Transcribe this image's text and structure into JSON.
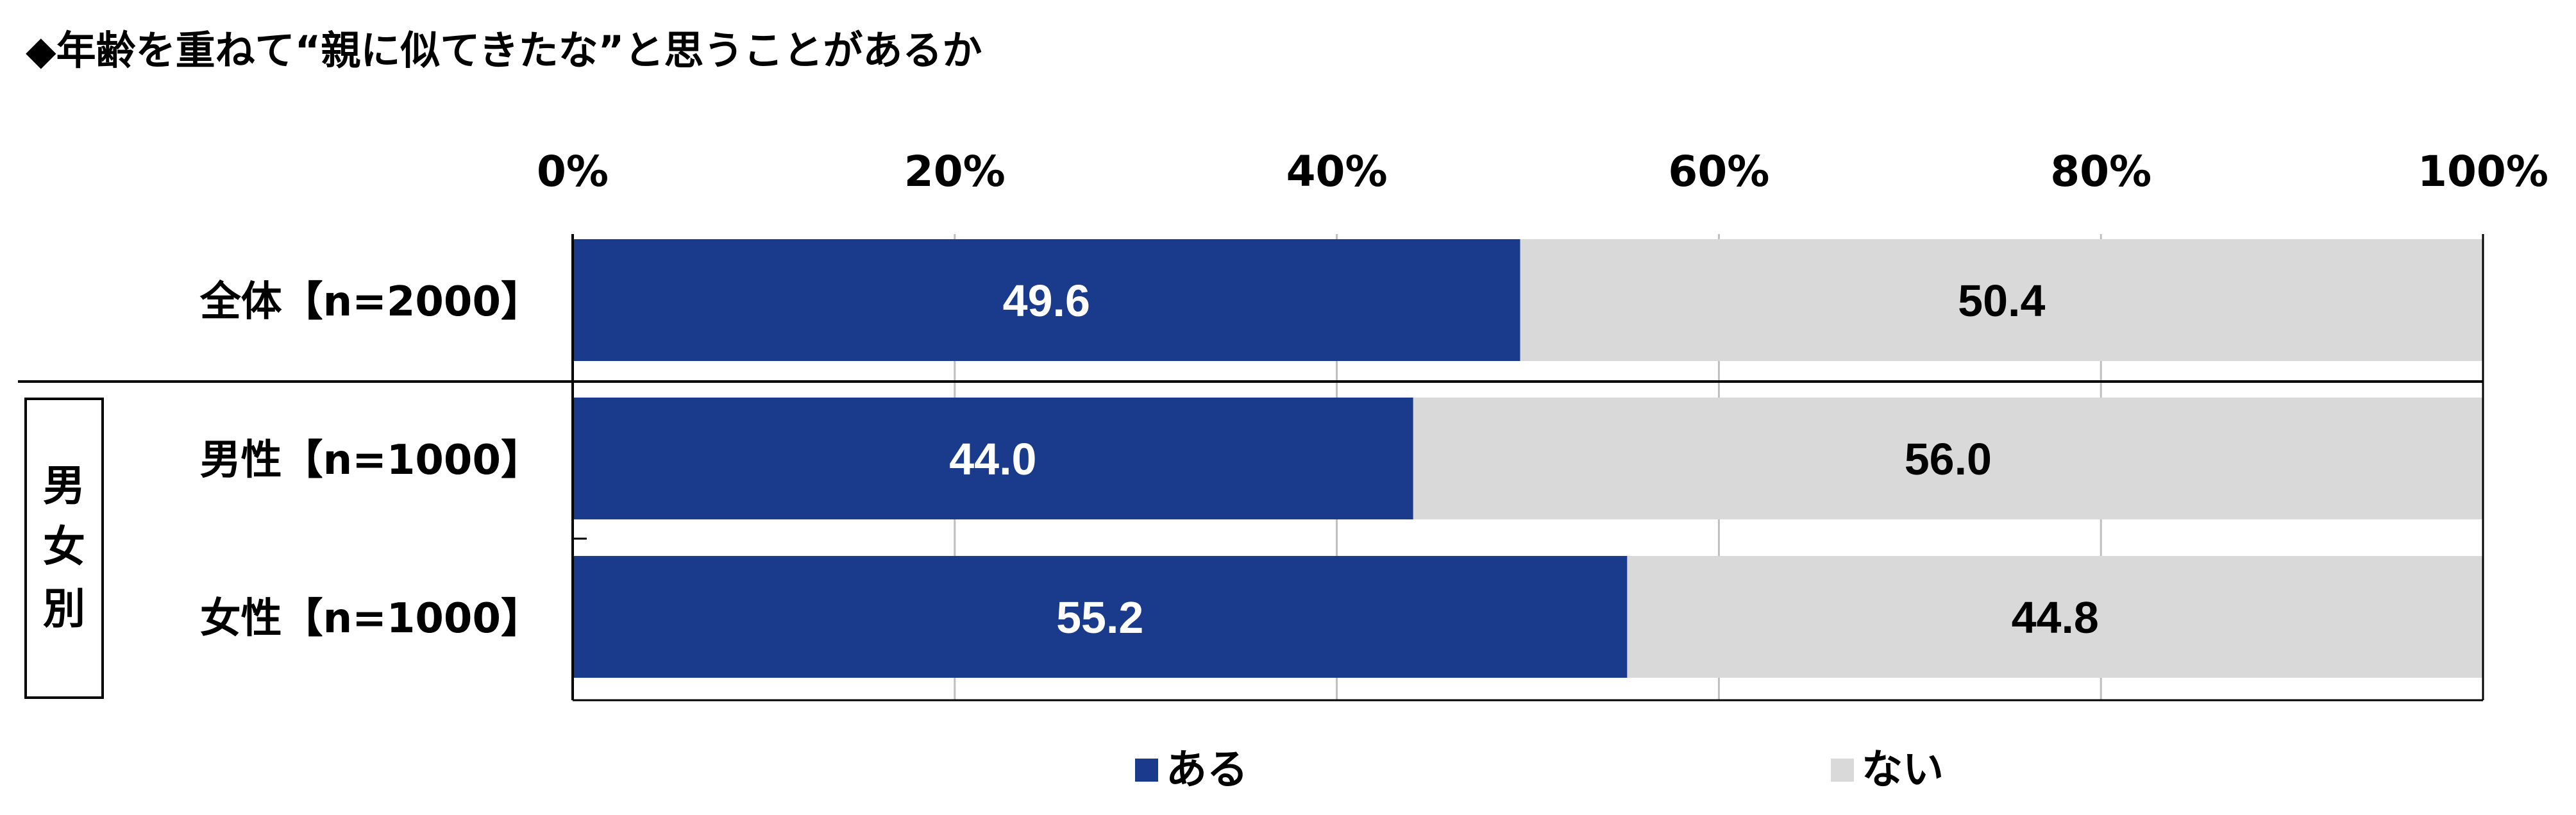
{
  "title": "◆年齢を重ねて“親に似てきたな”と思うことがあるか",
  "group_label": [
    "男",
    "女",
    "別"
  ],
  "colors": {
    "aru": "#1A3A8C",
    "nai": "#D9D9D9",
    "value_on_dark": "#ffffff",
    "value_on_light": "#000000"
  },
  "chart_data": {
    "type": "bar",
    "orientation": "horizontal",
    "stacked": true,
    "percent_stacked": true,
    "categories": [
      "全体【n=2000】",
      "男性【n=1000】",
      "女性【n=1000】"
    ],
    "series": [
      {
        "name": "ある",
        "values": [
          49.6,
          44.0,
          55.2
        ]
      },
      {
        "name": "ない",
        "values": [
          50.4,
          56.0,
          44.8
        ]
      }
    ],
    "data_labels": [
      [
        "49.6",
        "44.0",
        "55.2"
      ],
      [
        "50.4",
        "56.0",
        "44.8"
      ]
    ],
    "xlim": [
      0,
      100
    ],
    "tick_labels": [
      "0%",
      "20%",
      "40%",
      "60%",
      "80%",
      "100%"
    ],
    "grid": true,
    "legend_position": "bottom",
    "legend": [
      "ある",
      "ない"
    ]
  }
}
